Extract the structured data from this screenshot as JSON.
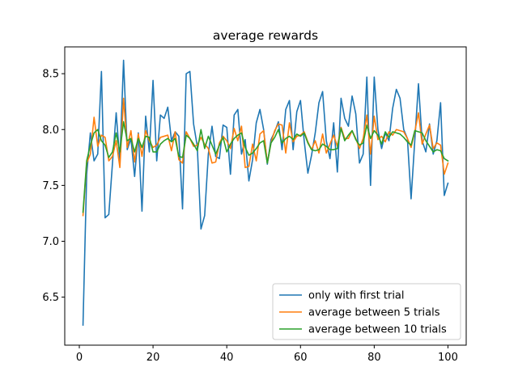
{
  "chart_data": {
    "type": "line",
    "title": "average rewards",
    "xlabel": "",
    "ylabel": "",
    "xlim": [
      -3.95,
      104.95
    ],
    "ylim": [
      6.07,
      8.74
    ],
    "x_ticks": [
      0,
      20,
      40,
      60,
      80,
      100
    ],
    "x_tick_labels": [
      "0",
      "20",
      "40",
      "60",
      "80",
      "100"
    ],
    "y_ticks": [
      6.5,
      7.0,
      7.5,
      8.0,
      8.5
    ],
    "y_tick_labels": [
      "6.5",
      "7.0",
      "7.5",
      "8.0",
      "8.5"
    ],
    "grid": false,
    "legend_position": "lower right",
    "x_start": 1,
    "series": [
      {
        "name": "only with first trial",
        "color": "#1f77b4",
        "values": [
          6.25,
          7.6,
          7.97,
          7.72,
          7.78,
          8.52,
          7.21,
          7.24,
          7.7,
          8.15,
          7.72,
          8.62,
          7.82,
          7.92,
          7.58,
          7.97,
          7.27,
          8.12,
          7.8,
          8.44,
          7.72,
          8.13,
          8.1,
          8.2,
          7.9,
          7.98,
          7.94,
          7.29,
          8.5,
          8.52,
          8.05,
          7.85,
          7.11,
          7.23,
          7.78,
          8.03,
          7.76,
          7.74,
          8.04,
          8.02,
          7.6,
          8.13,
          8.18,
          7.78,
          7.91,
          7.54,
          7.73,
          8.06,
          8.18,
          8.0,
          7.69,
          7.91,
          7.98,
          8.07,
          7.82,
          8.18,
          8.26,
          7.82,
          8.16,
          8.26,
          7.9,
          7.61,
          7.77,
          7.97,
          8.24,
          8.34,
          7.9,
          7.74,
          8.06,
          7.62,
          8.28,
          8.1,
          8.03,
          8.3,
          8.14,
          7.7,
          7.78,
          8.47,
          7.5,
          8.47,
          8.0,
          7.83,
          7.97,
          7.9,
          8.19,
          8.36,
          8.28,
          8.0,
          7.92,
          7.38,
          7.9,
          8.41,
          7.9,
          7.8,
          8.05,
          7.78,
          7.9,
          8.24,
          7.41,
          7.52
        ]
      },
      {
        "name": "average between 5 trials",
        "color": "#ff7f0e",
        "values": [
          7.23,
          7.7,
          7.78,
          8.11,
          7.85,
          7.95,
          7.93,
          7.72,
          7.76,
          7.9,
          7.66,
          8.28,
          7.84,
          7.99,
          7.71,
          7.96,
          7.76,
          7.99,
          7.9,
          7.84,
          7.86,
          7.93,
          7.94,
          7.95,
          7.81,
          7.98,
          7.73,
          7.7,
          7.98,
          7.92,
          7.85,
          7.86,
          7.93,
          7.87,
          7.83,
          7.7,
          7.71,
          7.88,
          7.94,
          7.9,
          7.83,
          8.01,
          7.9,
          8.03,
          7.66,
          7.67,
          7.87,
          7.72,
          7.96,
          7.99,
          7.7,
          7.88,
          7.99,
          8.05,
          8.04,
          7.79,
          8.06,
          7.89,
          7.94,
          7.95,
          7.98,
          7.89,
          7.82,
          7.9,
          7.79,
          7.96,
          7.79,
          7.87,
          7.95,
          7.85,
          8.02,
          7.92,
          7.92,
          7.99,
          7.92,
          7.83,
          7.92,
          8.13,
          7.78,
          8.12,
          7.91,
          7.94,
          7.89,
          7.98,
          7.95,
          8.0,
          7.99,
          7.98,
          7.92,
          7.84,
          7.98,
          8.15,
          7.87,
          7.96,
          8.04,
          7.83,
          7.88,
          7.86,
          7.6,
          7.7
        ]
      },
      {
        "name": "average between 10 trials",
        "color": "#2ca02c",
        "values": [
          7.26,
          7.72,
          7.86,
          7.97,
          8.0,
          7.9,
          7.86,
          7.75,
          7.8,
          7.97,
          7.8,
          8.07,
          7.9,
          7.92,
          7.8,
          7.92,
          7.84,
          7.94,
          7.93,
          7.8,
          7.8,
          7.87,
          7.9,
          7.92,
          7.89,
          7.92,
          7.76,
          7.75,
          7.95,
          7.92,
          7.87,
          7.81,
          8.0,
          7.83,
          7.94,
          7.86,
          7.78,
          7.86,
          7.93,
          7.8,
          7.87,
          7.92,
          7.95,
          7.97,
          7.84,
          7.77,
          7.79,
          7.83,
          7.88,
          7.9,
          7.7,
          7.88,
          7.93,
          8.0,
          7.88,
          7.92,
          7.94,
          7.91,
          7.96,
          7.94,
          7.97,
          7.88,
          7.82,
          7.81,
          7.82,
          7.87,
          7.85,
          7.82,
          7.82,
          7.83,
          8.01,
          7.9,
          7.95,
          7.99,
          7.91,
          7.86,
          7.88,
          8.04,
          7.92,
          7.99,
          7.95,
          7.87,
          7.98,
          7.93,
          7.98,
          7.97,
          7.96,
          7.93,
          7.89,
          7.86,
          7.99,
          7.98,
          7.97,
          7.9,
          7.85,
          7.8,
          7.82,
          7.81,
          7.74,
          7.72
        ]
      }
    ]
  }
}
